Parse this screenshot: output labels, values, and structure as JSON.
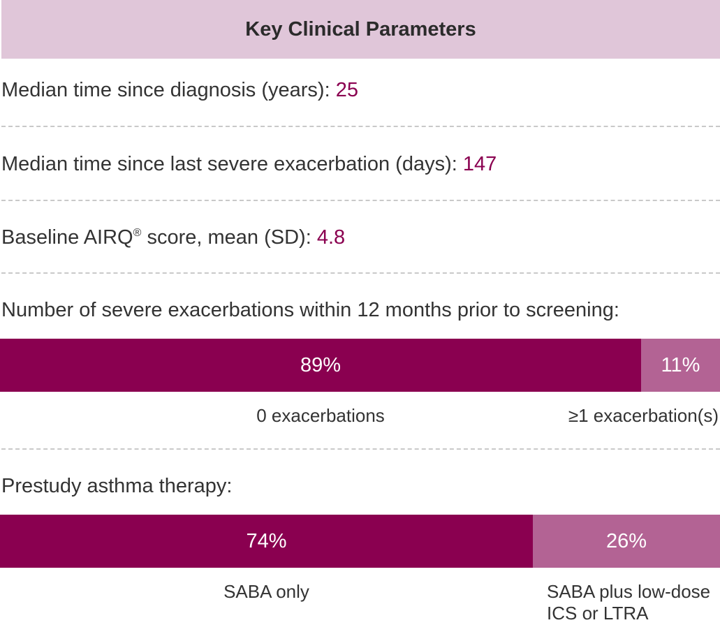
{
  "header": {
    "title": "Key Clinical Parameters"
  },
  "params": [
    {
      "label": "Median time since diagnosis (years): ",
      "value": "25"
    },
    {
      "label": "Median time since last severe exacerbation (days): ",
      "value": "147"
    },
    {
      "label": "Baseline AIRQ",
      "sup": "®",
      "label_after": " score, mean (SD): ",
      "value": "4.8"
    }
  ],
  "colors": {
    "primary": "#8a0050",
    "secondary": "#b36394",
    "header_bg": "#e0c6d9"
  },
  "chart_data": [
    {
      "type": "bar",
      "orientation": "horizontal-stacked",
      "title": "Number of severe exacerbations within 12 months prior to screening:",
      "categories": [
        "0 exacerbations",
        "≥1 exacerbation(s)"
      ],
      "values": [
        89,
        11
      ],
      "value_labels": [
        "89%",
        "11%"
      ]
    },
    {
      "type": "bar",
      "orientation": "horizontal-stacked",
      "title": "Prestudy asthma therapy:",
      "categories": [
        "SABA only",
        "SABA plus low-dose ICS or LTRA"
      ],
      "values": [
        74,
        26
      ],
      "value_labels": [
        "74%",
        "26%"
      ]
    }
  ]
}
